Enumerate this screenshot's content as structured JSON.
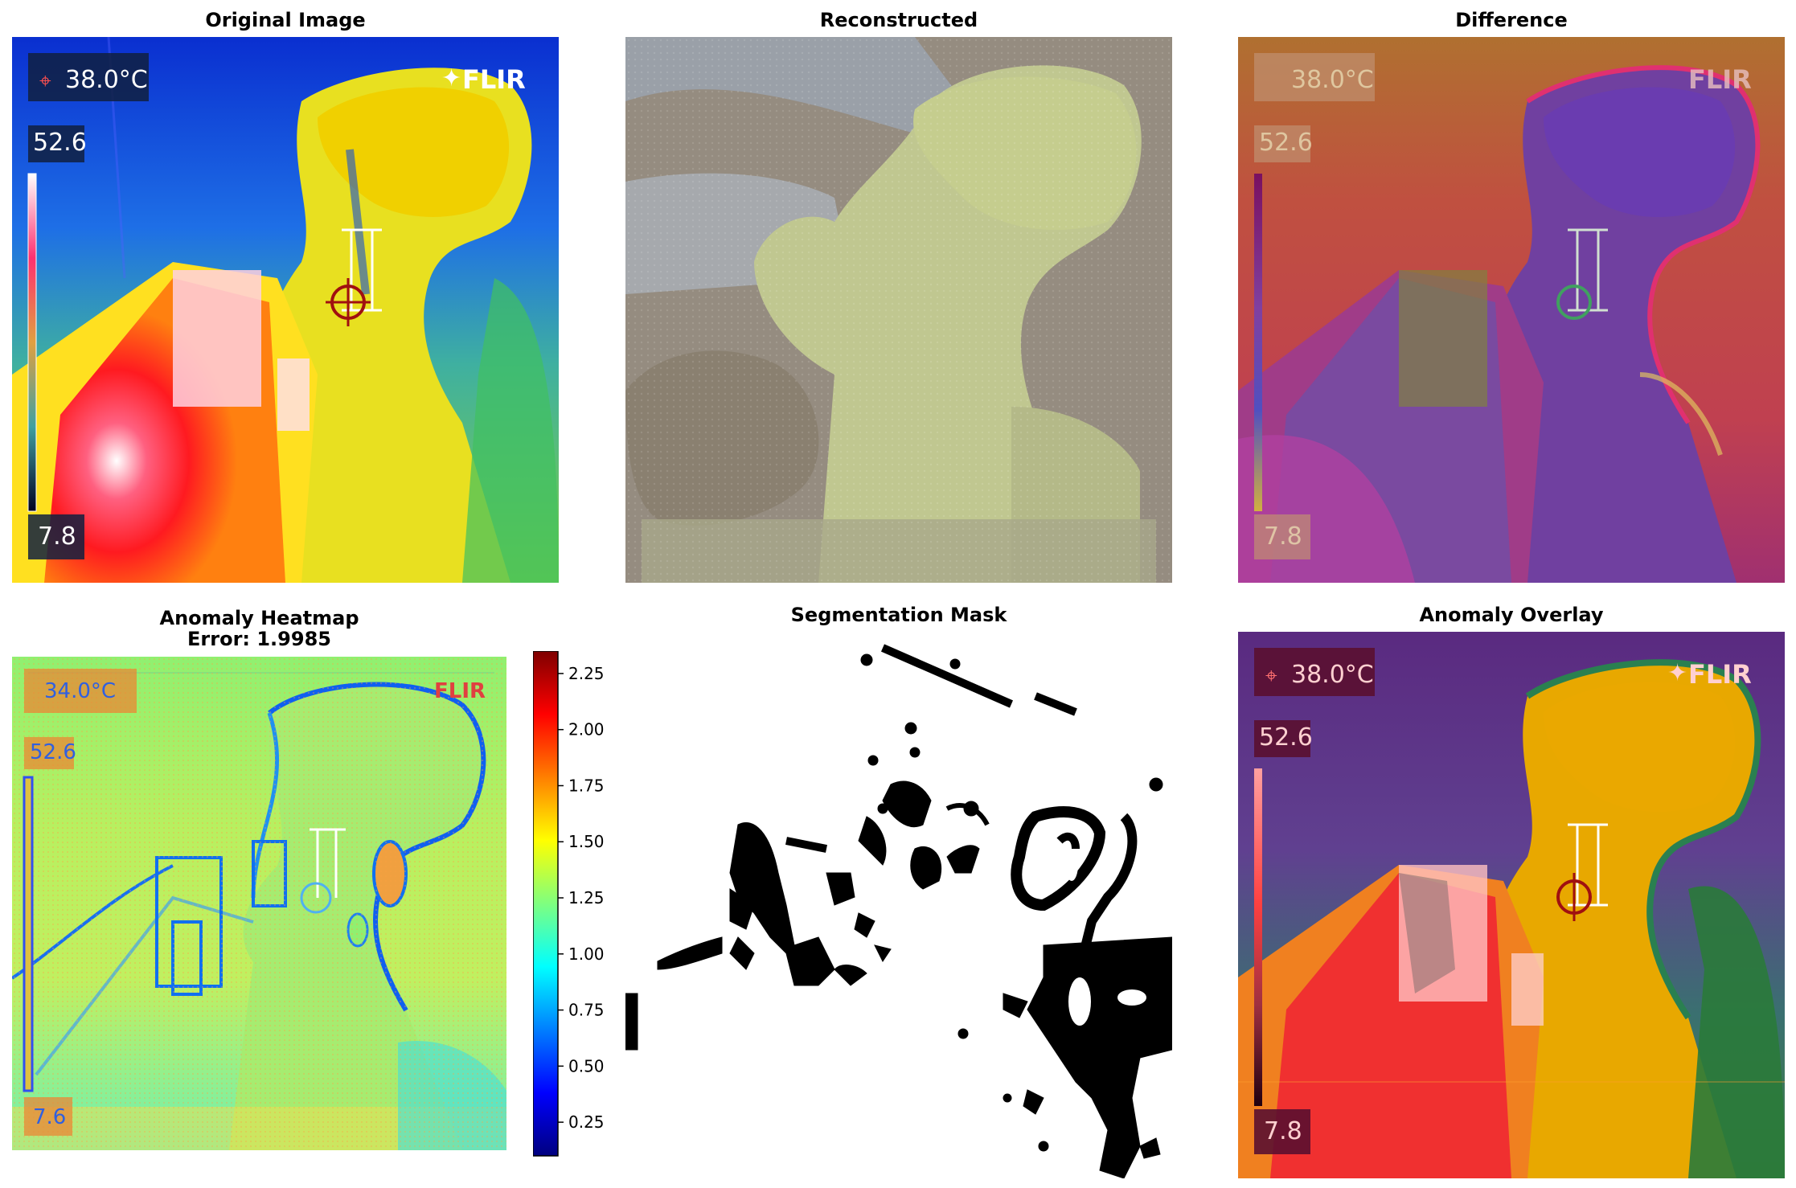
{
  "figure": {
    "panels": {
      "original": {
        "title": "Original Image"
      },
      "reconstructed": {
        "title": "Reconstructed"
      },
      "difference": {
        "title": "Difference"
      },
      "heatmap": {
        "title_line1": "Anomaly Heatmap",
        "title_line2": "Error: 1.9985"
      },
      "mask": {
        "title": "Segmentation Mask"
      },
      "overlay": {
        "title": "Anomaly Overlay"
      }
    },
    "thermal_overlay": {
      "spot_temp": "38.0°C",
      "brand": "FLIR",
      "scale_max": "52.6",
      "scale_min": "7.8",
      "heatmap_spot_temp": "34.0°C",
      "heatmap_scale_max": "52.6",
      "heatmap_scale_min": "7.6",
      "difference_spot_temp": "38.0°C",
      "difference_scale_max": "52.6",
      "difference_scale_min": "7.8"
    },
    "colors": {
      "jet": [
        "#00007f",
        "#0000ff",
        "#007fff",
        "#00ffff",
        "#7fff7f",
        "#ffff00",
        "#ff7f00",
        "#ff0000",
        "#7f0000"
      ]
    }
  },
  "chart_data": [
    {
      "type": "image",
      "title": "Original Image"
    },
    {
      "type": "image",
      "title": "Reconstructed"
    },
    {
      "type": "image",
      "title": "Difference"
    },
    {
      "type": "heatmap",
      "title": "Anomaly Heatmap\nError: 1.9985",
      "colorbar": {
        "colormap": "jet",
        "ticks": [
          "0.25",
          "0.50",
          "0.75",
          "1.00",
          "1.25",
          "1.50",
          "1.75",
          "2.00",
          "2.25"
        ],
        "tick_values": [
          0.25,
          0.5,
          0.75,
          1.0,
          1.25,
          1.5,
          1.75,
          2.0,
          2.25
        ],
        "range": [
          0.1,
          2.35
        ]
      }
    },
    {
      "type": "image",
      "title": "Segmentation Mask"
    },
    {
      "type": "image",
      "title": "Anomaly Overlay"
    }
  ]
}
